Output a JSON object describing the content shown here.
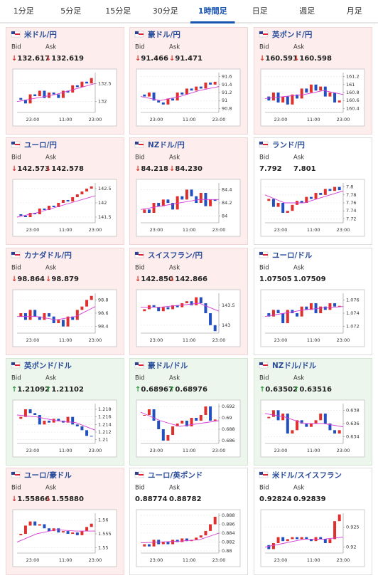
{
  "tabs": [
    "1分足",
    "5分足",
    "15分足",
    "30分足",
    "1時間足",
    "日足",
    "週足",
    "月足"
  ],
  "active_tab": 4,
  "cards": [
    {
      "title": "米ドル/円",
      "bid_label": "Bid",
      "ask_label": "Ask",
      "arrow": "↓",
      "bid": "132.617",
      "ask": "132.619",
      "chart_data": {
        "type": "candlestick",
        "xlabels": [
          "23:00",
          "11:00",
          "23:00"
        ],
        "ylim": [
          131.7,
          132.8
        ],
        "yticks": [
          132.5,
          132
        ],
        "open": 132.1,
        "closes": [
          132.05,
          131.95,
          132.2,
          132.15,
          132.3,
          132.1,
          132.25,
          132.2,
          132.1,
          132.3,
          132.25,
          132.45,
          132.4,
          132.55,
          132.5,
          132.65
        ],
        "ma": [
          132.0,
          132.1,
          132.2,
          132.35,
          132.5
        ]
      }
    },
    {
      "title": "豪ドル/円",
      "bid_label": "Bid",
      "ask_label": "Ask",
      "arrow": "↓",
      "bid": "91.466",
      "ask": "91.471",
      "chart_data": {
        "type": "candlestick",
        "xlabels": [
          "23:00",
          "11:00",
          "23:00"
        ],
        "ylim": [
          90.7,
          91.7
        ],
        "yticks": [
          91.6,
          91.4,
          91.2,
          91,
          90.8
        ],
        "open": 91.15,
        "closes": [
          91.1,
          91.2,
          91.0,
          90.95,
          90.9,
          91.05,
          91.0,
          91.2,
          91.15,
          91.3,
          91.25,
          91.35,
          91.3,
          91.45,
          91.4,
          91.47
        ],
        "ma": [
          91.1,
          91.0,
          91.1,
          91.25,
          91.35
        ]
      }
    },
    {
      "title": "英ポンド/円",
      "bid_label": "Bid",
      "ask_label": "Ask",
      "arrow": "↓",
      "bid": "160.591",
      "ask": "160.598",
      "chart_data": {
        "type": "candlestick",
        "xlabels": [
          "23:00",
          "11:00",
          "23:00"
        ],
        "ylim": [
          160.3,
          161.3
        ],
        "yticks": [
          161.2,
          161,
          160.8,
          160.6,
          160.4
        ],
        "open": 160.7,
        "closes": [
          160.6,
          160.8,
          160.55,
          160.7,
          160.5,
          160.75,
          160.65,
          160.9,
          160.8,
          161.0,
          160.85,
          160.95,
          160.7,
          160.8,
          160.55,
          160.6
        ],
        "ma": [
          160.65,
          160.7,
          160.75,
          160.85,
          160.75
        ]
      }
    },
    {
      "title": "ユーロ/円",
      "bid_label": "Bid",
      "ask_label": "Ask",
      "arrow": "↓",
      "bid": "142.573",
      "ask": "142.578",
      "chart_data": {
        "type": "candlestick",
        "xlabels": [
          "23:00",
          "11:00",
          "23:00"
        ],
        "ylim": [
          141.3,
          142.7
        ],
        "yticks": [
          142.5,
          142,
          141.5
        ],
        "open": 141.6,
        "closes": [
          141.55,
          141.5,
          141.65,
          141.6,
          141.8,
          141.75,
          141.9,
          141.85,
          142.0,
          142.1,
          142.05,
          142.2,
          142.3,
          142.4,
          142.5,
          142.58
        ],
        "ma": [
          141.5,
          141.65,
          141.85,
          142.05,
          142.25
        ]
      }
    },
    {
      "title": "NZドル/円",
      "bid_label": "Bid",
      "ask_label": "Ask",
      "arrow": "↓",
      "bid": "84.218",
      "ask": "84.230",
      "chart_data": {
        "type": "candlestick",
        "xlabels": [
          "23:00",
          "11:00",
          "23:00"
        ],
        "ylim": [
          83.9,
          84.5
        ],
        "yticks": [
          84.4,
          84.2,
          84
        ],
        "open": 84.05,
        "closes": [
          84.1,
          84.05,
          84.2,
          84.15,
          84.25,
          84.2,
          84.1,
          84.3,
          84.25,
          84.4,
          84.3,
          84.2,
          84.35,
          84.15,
          84.25,
          84.23
        ],
        "ma": [
          84.1,
          84.15,
          84.2,
          84.25,
          84.25
        ]
      }
    },
    {
      "title": "ランド/円",
      "bid_label": "Bid",
      "ask_label": "Ask",
      "bid": "7.792",
      "ask": "7.801",
      "chart_data": {
        "type": "candlestick",
        "xlabels": [
          "23:00",
          "11:00",
          "23:00"
        ],
        "ylim": [
          7.71,
          7.81
        ],
        "yticks": [
          7.8,
          7.78,
          7.76,
          7.74,
          7.72
        ],
        "open": 7.765,
        "closes": [
          7.77,
          7.75,
          7.76,
          7.735,
          7.74,
          7.755,
          7.765,
          7.76,
          7.775,
          7.77,
          7.785,
          7.78,
          7.795,
          7.79,
          7.8,
          7.792
        ],
        "ma": [
          7.78,
          7.76,
          7.76,
          7.775,
          7.79
        ]
      }
    },
    {
      "title": "カナダドル/円",
      "bid_label": "Bid",
      "ask_label": "Ask",
      "arrow": "↓",
      "bid": "98.864",
      "ask": "98.879",
      "chart_data": {
        "type": "candlestick",
        "xlabels": [
          "23:00",
          "11:00",
          "23:00"
        ],
        "ylim": [
          98.3,
          98.9
        ],
        "yticks": [
          98.8,
          98.6,
          98.4
        ],
        "open": 98.55,
        "closes": [
          98.6,
          98.5,
          98.65,
          98.55,
          98.5,
          98.6,
          98.55,
          98.45,
          98.5,
          98.4,
          98.55,
          98.5,
          98.65,
          98.7,
          98.8,
          98.86
        ],
        "ma": [
          98.55,
          98.55,
          98.5,
          98.55,
          98.7
        ]
      }
    },
    {
      "title": "スイスフラン/円",
      "bid_label": "Bid",
      "ask_label": "Ask",
      "arrow": "↓",
      "bid": "142.850",
      "ask": "142.866",
      "chart_data": {
        "type": "candlestick",
        "xlabels": [
          "23:00",
          "11:00",
          "23:00"
        ],
        "ylim": [
          142.8,
          143.8
        ],
        "yticks": [
          143.5,
          143
        ],
        "open": 143.35,
        "closes": [
          143.4,
          143.5,
          143.45,
          143.35,
          143.45,
          143.4,
          143.5,
          143.45,
          143.55,
          143.6,
          143.5,
          143.7,
          143.55,
          143.3,
          143.0,
          142.85
        ],
        "ma": [
          143.45,
          143.45,
          143.5,
          143.55,
          143.35
        ]
      }
    },
    {
      "title": "ユーロ/ドル",
      "bid_label": "Bid",
      "ask_label": "Ask",
      "bid": "1.07505",
      "ask": "1.07509",
      "chart_data": {
        "type": "candlestick",
        "xlabels": [
          "23:00",
          "11:00",
          "23:00"
        ],
        "ylim": [
          1.071,
          1.077
        ],
        "yticks": [
          1.076,
          1.074,
          1.072
        ],
        "open": 1.074,
        "closes": [
          1.0735,
          1.0745,
          1.074,
          1.0725,
          1.0745,
          1.074,
          1.0735,
          1.075,
          1.0745,
          1.0755,
          1.074,
          1.075,
          1.0745,
          1.0755,
          1.075,
          1.0751
        ],
        "ma": [
          1.0735,
          1.074,
          1.0745,
          1.0748,
          1.075
        ]
      }
    },
    {
      "title": "英ポンド/ドル",
      "bid_label": "Bid",
      "ask_label": "Ask",
      "arrow": "↑",
      "bid": "1.21092",
      "ask": "1.21102",
      "chart_data": {
        "type": "candlestick",
        "xlabels": [
          "23:00",
          "11:00",
          "23:00"
        ],
        "ylim": [
          1.209,
          1.2195
        ],
        "yticks": [
          1.218,
          1.216,
          1.214,
          1.212,
          1.21
        ],
        "open": 1.2155,
        "closes": [
          1.216,
          1.218,
          1.217,
          1.2165,
          1.214,
          1.215,
          1.2145,
          1.2155,
          1.215,
          1.2145,
          1.216,
          1.214,
          1.2135,
          1.2125,
          1.211,
          1.2109
        ],
        "ma": [
          1.2165,
          1.216,
          1.215,
          1.2145,
          1.2125
        ]
      }
    },
    {
      "title": "豪ドル/ドル",
      "bid_label": "Bid",
      "ask_label": "Ask",
      "arrow": "↑",
      "bid": "0.68967",
      "ask": "0.68976",
      "chart_data": {
        "type": "candlestick",
        "xlabels": [
          "23:00",
          "11:00",
          "23:00"
        ],
        "ylim": [
          0.6855,
          0.6925
        ],
        "yticks": [
          0.692,
          0.69,
          0.688,
          0.686
        ],
        "open": 0.6905,
        "closes": [
          0.6905,
          0.6915,
          0.6895,
          0.688,
          0.686,
          0.687,
          0.6885,
          0.689,
          0.6895,
          0.6885,
          0.69,
          0.6895,
          0.6905,
          0.692,
          0.6895,
          0.6897
        ],
        "ma": [
          0.691,
          0.6895,
          0.6885,
          0.689,
          0.6895
        ]
      }
    },
    {
      "title": "NZドル/ドル",
      "bid_label": "Bid",
      "ask_label": "Ask",
      "arrow": "↑",
      "bid": "0.63502",
      "ask": "0.63516",
      "chart_data": {
        "type": "candlestick",
        "xlabels": [
          "23:00",
          "11:00",
          "23:00"
        ],
        "ylim": [
          0.633,
          0.639
        ],
        "yticks": [
          0.638,
          0.636,
          0.634
        ],
        "open": 0.6368,
        "closes": [
          0.637,
          0.638,
          0.6365,
          0.6375,
          0.6345,
          0.635,
          0.6365,
          0.636,
          0.6355,
          0.636,
          0.6365,
          0.6375,
          0.636,
          0.635,
          0.6345,
          0.635
        ],
        "ma": [
          0.6375,
          0.637,
          0.636,
          0.636,
          0.6355
        ]
      }
    },
    {
      "title": "ユーロ/豪ドル",
      "bid_label": "Bid",
      "ask_label": "Ask",
      "arrow": "↓",
      "bid": "1.55866",
      "ask": "1.55880",
      "chart_data": {
        "type": "candlestick",
        "xlabels": [
          "23:00",
          "11:00",
          "23:00"
        ],
        "ylim": [
          1.548,
          1.5625
        ],
        "yticks": [
          1.56,
          1.555,
          1.55
        ],
        "open": 1.5545,
        "closes": [
          1.555,
          1.558,
          1.5595,
          1.558,
          1.5585,
          1.557,
          1.556,
          1.557,
          1.5555,
          1.556,
          1.555,
          1.5555,
          1.5545,
          1.556,
          1.5575,
          1.5587
        ],
        "ma": [
          1.552,
          1.555,
          1.5565,
          1.556,
          1.556
        ]
      }
    },
    {
      "title": "ユーロ/英ポンド",
      "bid_label": "Bid",
      "ask_label": "Ask",
      "bid": "0.88774",
      "ask": "0.88782",
      "chart_data": {
        "type": "candlestick",
        "xlabels": [
          "23:00",
          "11:00",
          "23:00"
        ],
        "ylim": [
          0.8795,
          0.8885
        ],
        "yticks": [
          0.888,
          0.886,
          0.884,
          0.882,
          0.88
        ],
        "open": 0.881,
        "closes": [
          0.8815,
          0.881,
          0.8825,
          0.8815,
          0.882,
          0.8815,
          0.8825,
          0.882,
          0.8828,
          0.8822,
          0.8825,
          0.883,
          0.8835,
          0.8845,
          0.886,
          0.8877
        ],
        "ma": [
          0.8818,
          0.882,
          0.8822,
          0.8825,
          0.884
        ]
      }
    },
    {
      "title": "米ドル/スイスフラン",
      "bid_label": "Bid",
      "ask_label": "Ask",
      "bid": "0.92824",
      "ask": "0.92839",
      "chart_data": {
        "type": "candlestick",
        "xlabels": [
          "23:00",
          "11:00",
          "23:00"
        ],
        "ylim": [
          0.9185,
          0.9285
        ],
        "yticks": [
          0.925,
          0.92
        ],
        "open": 0.9205,
        "closes": [
          0.9195,
          0.921,
          0.9225,
          0.9215,
          0.922,
          0.9225,
          0.922,
          0.9225,
          0.922,
          0.9215,
          0.9225,
          0.922,
          0.921,
          0.922,
          0.9265,
          0.9282
        ],
        "ma": [
          0.92,
          0.921,
          0.922,
          0.922,
          0.9225
        ]
      }
    }
  ]
}
